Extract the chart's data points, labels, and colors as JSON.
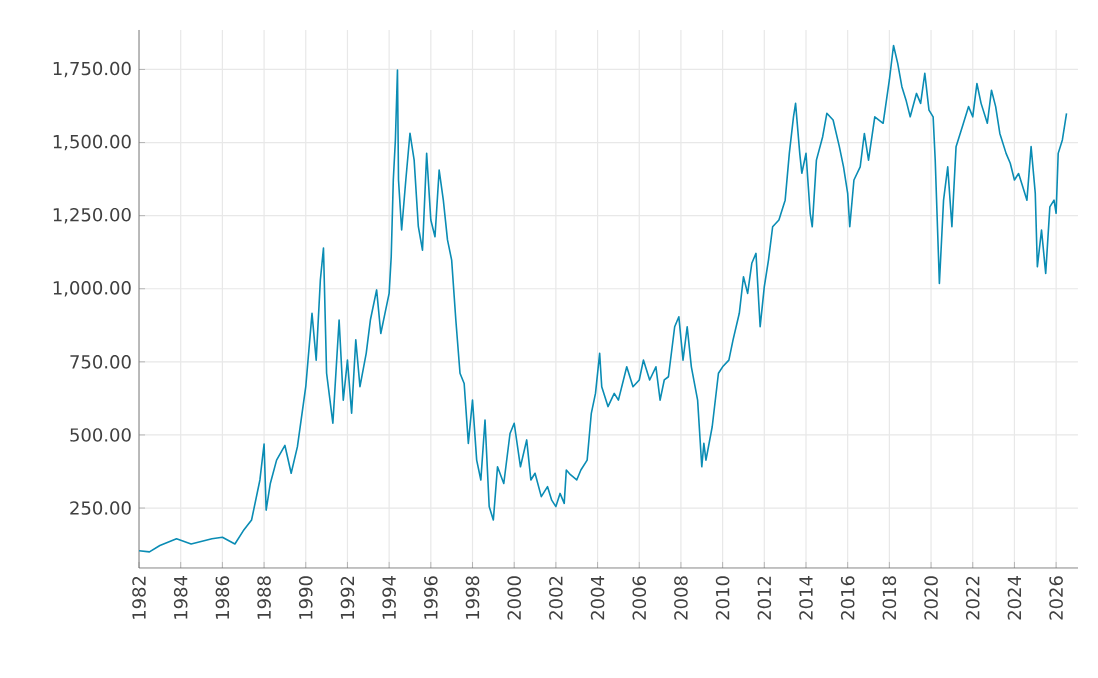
{
  "chart_data": {
    "type": "line",
    "color": "#0a8cb4",
    "grid": true,
    "marker": "none",
    "line_style": "solid",
    "x": [
      1982.0,
      1982.5,
      1983.0,
      1983.8,
      1984.5,
      1985.5,
      1986.0,
      1986.6,
      1987.0,
      1987.4,
      1987.8,
      1988.0,
      1988.1,
      1988.3,
      1988.6,
      1989.0,
      1989.3,
      1989.6,
      1990.0,
      1990.3,
      1990.5,
      1990.7,
      1990.85,
      1991.0,
      1991.2,
      1991.3,
      1991.6,
      1991.8,
      1992.0,
      1992.2,
      1992.4,
      1992.6,
      1992.9,
      1993.1,
      1993.4,
      1993.6,
      1993.8,
      1994.0,
      1994.1,
      1994.2,
      1994.3,
      1994.4,
      1994.45,
      1994.6,
      1994.8,
      1995.0,
      1995.2,
      1995.4,
      1995.6,
      1995.8,
      1996.0,
      1996.2,
      1996.4,
      1996.6,
      1996.8,
      1997.0,
      1997.2,
      1997.4,
      1997.6,
      1997.8,
      1998.0,
      1998.2,
      1998.4,
      1998.6,
      1998.8,
      1999.0,
      1999.2,
      1999.5,
      1999.8,
      2000.0,
      2000.3,
      2000.6,
      2000.8,
      2001.0,
      2001.3,
      2001.6,
      2001.8,
      2002.0,
      2002.2,
      2002.4,
      2002.5,
      2002.7,
      2003.0,
      2003.2,
      2003.5,
      2003.7,
      2003.9,
      2004.1,
      2004.2,
      2004.5,
      2004.8,
      2005.0,
      2005.4,
      2005.7,
      2006.0,
      2006.2,
      2006.5,
      2006.8,
      2007.0,
      2007.2,
      2007.4,
      2007.7,
      2007.9,
      2008.1,
      2008.3,
      2008.5,
      2008.8,
      2009.0,
      2009.1,
      2009.2,
      2009.5,
      2009.8,
      2010.0,
      2010.3,
      2010.5,
      2010.8,
      2011.0,
      2011.2,
      2011.4,
      2011.6,
      2011.8,
      2012.0,
      2012.2,
      2012.4,
      2012.7,
      2013.0,
      2013.2,
      2013.4,
      2013.5,
      2013.7,
      2013.8,
      2014.0,
      2014.2,
      2014.3,
      2014.5,
      2014.8,
      2015.0,
      2015.3,
      2015.6,
      2015.8,
      2016.0,
      2016.1,
      2016.3,
      2016.6,
      2016.8,
      2017.0,
      2017.3,
      2017.7,
      2018.0,
      2018.2,
      2018.4,
      2018.6,
      2018.8,
      2019.0,
      2019.3,
      2019.5,
      2019.7,
      2019.9,
      2020.1,
      2020.2,
      2020.4,
      2020.6,
      2020.8,
      2021.0,
      2021.2,
      2021.5,
      2021.8,
      2022.0,
      2022.2,
      2022.4,
      2022.7,
      2022.9,
      2023.1,
      2023.3,
      2023.6,
      2023.8,
      2024.0,
      2024.2,
      2024.4,
      2024.6,
      2024.8,
      2025.0,
      2025.1,
      2025.3,
      2025.5,
      2025.7,
      2025.9,
      2026.0,
      2026.1,
      2026.3,
      2026.5
    ],
    "values": [
      104,
      100,
      122,
      145,
      127,
      145,
      150,
      127,
      172,
      209,
      346,
      469,
      243,
      334,
      414,
      464,
      369,
      460,
      665,
      916,
      756,
      1030,
      1139,
      711,
      597,
      540,
      893,
      619,
      756,
      574,
      825,
      665,
      779,
      893,
      996,
      847,
      916,
      984,
      1110,
      1372,
      1509,
      1748,
      1372,
      1201,
      1372,
      1532,
      1440,
      1213,
      1132,
      1463,
      1235,
      1178,
      1406,
      1303,
      1167,
      1098,
      893,
      711,
      676,
      471,
      619,
      414,
      346,
      551,
      255,
      209,
      391,
      334,
      505,
      540,
      391,
      483,
      346,
      369,
      289,
      323,
      277,
      255,
      300,
      266,
      380,
      364,
      346,
      380,
      414,
      574,
      642,
      779,
      665,
      597,
      642,
      619,
      733,
      665,
      688,
      756,
      688,
      733,
      619,
      688,
      699,
      870,
      904,
      756,
      870,
      733,
      619,
      391,
      471,
      414,
      528,
      711,
      733,
      756,
      825,
      916,
      1041,
      984,
      1087,
      1121,
      870,
      1007,
      1098,
      1212,
      1235,
      1303,
      1463,
      1588,
      1634,
      1463,
      1395,
      1463,
      1258,
      1212,
      1440,
      1520,
      1600,
      1577,
      1486,
      1417,
      1326,
      1212,
      1372,
      1417,
      1531,
      1440,
      1588,
      1566,
      1714,
      1832,
      1771,
      1691,
      1645,
      1588,
      1668,
      1634,
      1737,
      1611,
      1588,
      1440,
      1018,
      1303,
      1417,
      1212,
      1486,
      1554,
      1623,
      1588,
      1702,
      1634,
      1566,
      1679,
      1623,
      1531,
      1463,
      1429,
      1372,
      1394,
      1349,
      1303,
      1486,
      1326,
      1075,
      1201,
      1052,
      1280,
      1303,
      1258,
      1463,
      1509,
      1600
    ],
    "xlim": [
      1982,
      2027.05
    ],
    "ylim": [
      45,
      1885
    ],
    "xticks": [
      1982,
      1984,
      1986,
      1988,
      1990,
      1992,
      1994,
      1996,
      1998,
      2000,
      2002,
      2004,
      2006,
      2008,
      2010,
      2012,
      2014,
      2016,
      2018,
      2020,
      2022,
      2024,
      2026
    ],
    "yticks": [
      {
        "value": 250,
        "label": "250.00"
      },
      {
        "value": 500,
        "label": "500.00"
      },
      {
        "value": 750,
        "label": "750.00"
      },
      {
        "value": 1000,
        "label": "1,000.00"
      },
      {
        "value": 1250,
        "label": "1,250.00"
      },
      {
        "value": 1500,
        "label": "1,500.00"
      },
      {
        "value": 1750,
        "label": "1,750.00"
      }
    ]
  }
}
